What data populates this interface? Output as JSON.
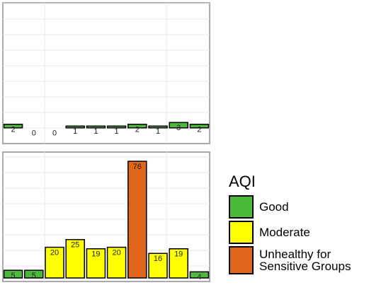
{
  "chart_data": [
    {
      "type": "bar",
      "ylim": [
        -8.8,
        70
      ],
      "values": [
        2,
        0,
        0,
        1,
        1,
        1,
        2,
        1,
        3,
        2
      ],
      "colors": [
        "#4cb83c",
        "#4cb83c",
        "#4cb83c",
        "#4cb83c",
        "#4cb83c",
        "#4cb83c",
        "#4cb83c",
        "#4cb83c",
        "#4cb83c",
        "#4cb83c"
      ]
    },
    {
      "type": "bar",
      "ylim": [
        -2.3,
        82
      ],
      "values": [
        5,
        5,
        20,
        25,
        19,
        20,
        76,
        16,
        19,
        4
      ],
      "colors": [
        "#4cb83c",
        "#4cb83c",
        "#ffff00",
        "#ffff00",
        "#ffff00",
        "#ffff00",
        "#e0661c",
        "#ffff00",
        "#ffff00",
        "#4cb83c"
      ]
    }
  ],
  "legend": {
    "title": "AQI",
    "items": [
      {
        "name": "Good",
        "color": "#4cb83c"
      },
      {
        "name": "Moderate",
        "color": "#ffff00"
      },
      {
        "name": "Unhealthy for Sensitive Groups",
        "color": "#e0661c"
      }
    ]
  }
}
